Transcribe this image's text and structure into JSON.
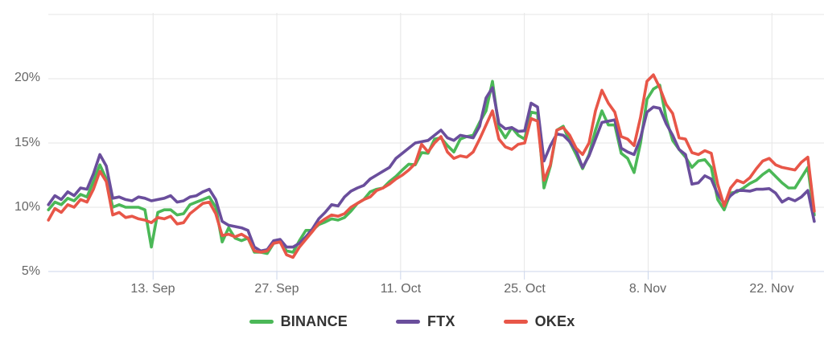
{
  "chart_data": {
    "type": "line",
    "title": "",
    "xlabel": "",
    "ylabel": "",
    "x_axis": {
      "unit": "date",
      "tick_labels": [
        "13. Sep",
        "27. Sep",
        "11. Oct",
        "25. Oct",
        "8. Nov",
        "22. Nov"
      ],
      "tick_days_from_sep1": [
        12,
        26,
        40,
        54,
        68,
        82
      ],
      "range_days_from_sep1": [
        0,
        87
      ]
    },
    "y_axis": {
      "unit": "%",
      "tick_labels": [
        "5%",
        "10%",
        "15%",
        "20%"
      ],
      "tick_values": [
        5,
        10,
        15,
        20
      ],
      "gridline_values": [
        10,
        15,
        20,
        25
      ],
      "range": [
        5,
        25
      ],
      "grid": true
    },
    "sampling": {
      "start_day": 0.16,
      "step_day": 0.728
    },
    "series": [
      {
        "name": "BINANCE",
        "color": "#4bb857",
        "values": [
          9.8,
          10.4,
          10.2,
          10.7,
          10.5,
          11.0,
          10.8,
          12.0,
          13.3,
          12.2,
          10.0,
          10.2,
          10.0,
          10.0,
          10.0,
          9.8,
          6.9,
          9.6,
          9.8,
          9.8,
          9.4,
          9.5,
          10.2,
          10.4,
          10.6,
          10.8,
          10.0,
          7.3,
          8.4,
          7.6,
          7.4,
          7.6,
          6.5,
          6.5,
          6.4,
          7.2,
          7.3,
          6.6,
          6.5,
          7.4,
          8.2,
          8.2,
          8.65,
          8.85,
          9.1,
          9.0,
          9.2,
          9.7,
          10.3,
          10.6,
          11.2,
          11.4,
          11.5,
          12.0,
          12.4,
          12.9,
          13.35,
          13.3,
          14.25,
          14.2,
          15.3,
          15.4,
          14.8,
          14.3,
          15.3,
          15.5,
          15.6,
          16.6,
          17.5,
          19.8,
          16.2,
          15.4,
          16.2,
          15.6,
          15.3,
          17.4,
          17.3,
          11.5,
          13.2,
          16.0,
          16.3,
          15.1,
          14.1,
          13.0,
          14.1,
          16.0,
          17.5,
          16.4,
          16.4,
          14.2,
          13.8,
          12.7,
          15.0,
          18.4,
          19.2,
          19.5,
          16.9,
          15.2,
          14.5,
          13.9,
          13.1,
          13.6,
          13.7,
          13.1,
          10.6,
          9.8,
          11.1,
          11.2,
          11.5,
          11.85,
          12.1,
          12.55,
          12.9,
          12.4,
          11.9,
          11.5,
          11.5,
          12.3,
          13.1,
          9.4
        ]
      },
      {
        "name": "FTX",
        "color": "#6a4e9c",
        "values": [
          10.2,
          10.9,
          10.6,
          11.2,
          10.9,
          11.5,
          11.4,
          12.6,
          14.1,
          13.2,
          10.7,
          10.8,
          10.6,
          10.5,
          10.8,
          10.7,
          10.5,
          10.6,
          10.7,
          10.9,
          10.4,
          10.5,
          10.8,
          10.9,
          11.2,
          11.4,
          10.6,
          8.9,
          8.6,
          8.5,
          8.4,
          8.2,
          6.9,
          6.6,
          6.7,
          7.4,
          7.5,
          6.9,
          6.9,
          7.2,
          7.7,
          8.3,
          9.1,
          9.6,
          10.2,
          10.1,
          10.8,
          11.25,
          11.5,
          11.7,
          12.2,
          12.5,
          12.8,
          13.1,
          13.8,
          14.2,
          14.6,
          15.0,
          15.1,
          15.2,
          15.6,
          16.0,
          15.4,
          15.2,
          15.6,
          15.5,
          15.4,
          16.3,
          18.5,
          19.3,
          16.5,
          16.1,
          16.2,
          15.9,
          15.95,
          18.1,
          17.8,
          13.6,
          14.8,
          15.7,
          15.6,
          15.1,
          14.4,
          13.1,
          14.0,
          15.3,
          16.6,
          16.7,
          16.8,
          14.6,
          14.3,
          14.1,
          15.4,
          17.4,
          17.8,
          17.7,
          16.5,
          15.6,
          14.5,
          14.1,
          11.8,
          11.9,
          12.45,
          12.2,
          11.0,
          10.3,
          10.9,
          11.3,
          11.3,
          11.25,
          11.4,
          11.4,
          11.45,
          11.1,
          10.4,
          10.7,
          10.5,
          10.8,
          11.3,
          8.9
        ]
      },
      {
        "name": "OKEx",
        "color": "#e85648",
        "values": [
          9.0,
          9.9,
          9.6,
          10.2,
          10.0,
          10.6,
          10.4,
          11.4,
          12.8,
          12.0,
          9.4,
          9.6,
          9.2,
          9.3,
          9.1,
          9.0,
          8.8,
          9.2,
          9.1,
          9.3,
          8.7,
          8.8,
          9.5,
          9.9,
          10.3,
          10.4,
          9.5,
          7.8,
          7.9,
          7.7,
          7.9,
          7.6,
          6.6,
          6.5,
          6.6,
          7.2,
          7.3,
          6.3,
          6.1,
          6.9,
          7.5,
          8.1,
          8.75,
          9.1,
          9.4,
          9.3,
          9.5,
          10.0,
          10.3,
          10.6,
          10.8,
          11.3,
          11.5,
          11.8,
          12.2,
          12.5,
          12.9,
          13.4,
          14.9,
          14.3,
          15.0,
          15.5,
          14.3,
          13.8,
          14.0,
          13.9,
          14.3,
          15.3,
          16.4,
          17.5,
          15.3,
          14.7,
          14.5,
          14.9,
          15.0,
          16.9,
          16.7,
          12.1,
          13.3,
          16.0,
          16.2,
          15.6,
          14.6,
          14.1,
          15.0,
          17.5,
          19.1,
          18.1,
          17.4,
          15.5,
          15.3,
          14.8,
          17.0,
          19.8,
          20.3,
          19.3,
          18.0,
          17.3,
          15.4,
          15.3,
          14.25,
          14.1,
          14.4,
          14.2,
          11.8,
          10.1,
          11.5,
          12.1,
          11.9,
          12.3,
          13.0,
          13.6,
          13.8,
          13.3,
          13.1,
          13.0,
          12.9,
          13.5,
          13.9,
          9.7
        ]
      }
    ],
    "legend_position": "bottom-center",
    "colors": {
      "gridline": "#e6e6e6",
      "axis_line": "#ccd6eb",
      "tick_mark": "#ccd6eb",
      "axis_label_text": "#666666",
      "legend_text": "#333333",
      "background": "#ffffff"
    }
  }
}
